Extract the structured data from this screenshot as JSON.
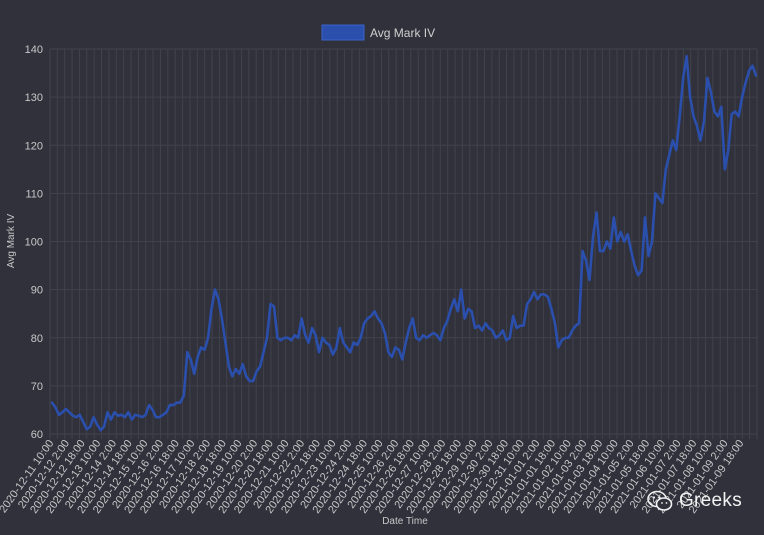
{
  "chart_data": {
    "type": "line",
    "title": "",
    "xlabel": "Date Time",
    "ylabel": "Avg Mark IV",
    "ylim": [
      60,
      140
    ],
    "yticks": [
      60,
      70,
      80,
      90,
      100,
      110,
      120,
      130,
      140
    ],
    "grid": true,
    "legend": "top-center",
    "colors": {
      "background": "#30313b",
      "series": "#2a4fad",
      "grid": "#41424c",
      "text": "#c8c8c8"
    },
    "xticks": [
      "2020-12-11 10:00",
      "2020-12-12 2:00",
      "2020-12-12 18:00",
      "2020-12-13 10:00",
      "2020-12-14 2:00",
      "2020-12-14 18:00",
      "2020-12-15 10:00",
      "2020-12-16 2:00",
      "2020-12-16 18:00",
      "2020-12-17 10:00",
      "2020-12-18 2:00",
      "2020-12-18 18:00",
      "2020-12-19 10:00",
      "2020-12-20 2:00",
      "2020-12-20 18:00",
      "2020-12-21 10:00",
      "2020-12-22 2:00",
      "2020-12-22 18:00",
      "2020-12-23 10:00",
      "2020-12-24 2:00",
      "2020-12-24 18:00",
      "2020-12-25 10:00",
      "2020-12-26 2:00",
      "2020-12-26 18:00",
      "2020-12-27 10:00",
      "2020-12-28 2:00",
      "2020-12-28 18:00",
      "2020-12-29 10:00",
      "2020-12-30 2:00",
      "2020-12-30 18:00",
      "2020-12-31 10:00",
      "2021-01-01 2:00",
      "2021-01-01 18:00",
      "2021-01-02 10:00",
      "2021-01-03 2:00",
      "2021-01-03 18:00",
      "2021-01-04 10:00",
      "2021-01-05 2:00",
      "2021-01-05 18:00",
      "2021-01-06 10:00",
      "2021-01-07 2:00",
      "2021-01-07 18:00",
      "2021-01-08 10:00",
      "2021-01-09 2:00",
      "2021-01-09 18:00"
    ],
    "series": [
      {
        "name": "Avg Mark IV",
        "x_start": "2020-12-11 09:00",
        "sample_interval_hours": 4,
        "values": [
          66.5,
          65.5,
          64.0,
          64.5,
          65.2,
          64.5,
          63.8,
          63.5,
          64.0,
          62.5,
          61.0,
          61.5,
          63.5,
          62.0,
          60.8,
          61.5,
          64.5,
          63.0,
          64.5,
          63.8,
          64.0,
          63.5,
          64.5,
          63.0,
          64.0,
          63.8,
          63.5,
          64.0,
          66.0,
          65.0,
          63.5,
          63.5,
          64.0,
          64.5,
          66.0,
          66.0,
          66.5,
          66.5,
          68.0,
          77.0,
          75.5,
          72.5,
          76.0,
          78.0,
          77.5,
          80.0,
          86.0,
          90.0,
          88.0,
          84.0,
          79.0,
          74.0,
          72.0,
          73.5,
          72.5,
          74.5,
          72.0,
          71.0,
          71.0,
          73.0,
          74.0,
          77.0,
          80.0,
          87.0,
          86.5,
          80.0,
          79.5,
          80.0,
          80.0,
          79.5,
          80.5,
          80.0,
          84.0,
          80.5,
          79.0,
          82.0,
          80.5,
          77.0,
          80.0,
          79.0,
          78.5,
          76.5,
          78.0,
          82.0,
          79.0,
          78.0,
          77.0,
          79.0,
          78.5,
          80.0,
          83.0,
          84.0,
          84.5,
          85.5,
          84.0,
          83.0,
          81.0,
          77.0,
          76.0,
          78.0,
          77.5,
          75.5,
          79.0,
          82.0,
          84.0,
          80.0,
          79.5,
          80.5,
          80.0,
          80.5,
          81.0,
          80.5,
          79.5,
          82.0,
          83.5,
          86.0,
          88.0,
          85.5,
          90.0,
          84.0,
          86.0,
          85.5,
          82.0,
          82.5,
          81.5,
          83.0,
          82.0,
          81.5,
          80.0,
          80.5,
          81.5,
          79.5,
          80.0,
          84.5,
          82.0,
          82.5,
          82.5,
          87.0,
          88.0,
          89.5,
          88.0,
          89.0,
          89.0,
          88.5,
          86.0,
          83.0,
          78.0,
          79.5,
          80.0,
          80.0,
          81.5,
          82.5,
          83.0,
          98.0,
          96.0,
          92.0,
          101.0,
          106.0,
          98.0,
          98.0,
          100.0,
          98.5,
          105.0,
          100.0,
          102.0,
          100.0,
          101.5,
          98.0,
          95.0,
          93.0,
          94.0,
          105.0,
          97.0,
          100.0,
          110.0,
          109.0,
          108.0,
          115.0,
          118.0,
          121.0,
          119.0,
          126.0,
          134.0,
          138.5,
          130.0,
          126.0,
          124.0,
          121.0,
          125.0,
          134.0,
          131.0,
          127.0,
          126.0,
          128.0,
          115.0,
          119.0,
          126.5,
          127.0,
          126.0,
          130.0,
          133.0,
          135.5,
          136.5,
          134.5
        ]
      }
    ]
  },
  "watermark": {
    "text": "Greeks",
    "icon": "wechat-icon"
  }
}
